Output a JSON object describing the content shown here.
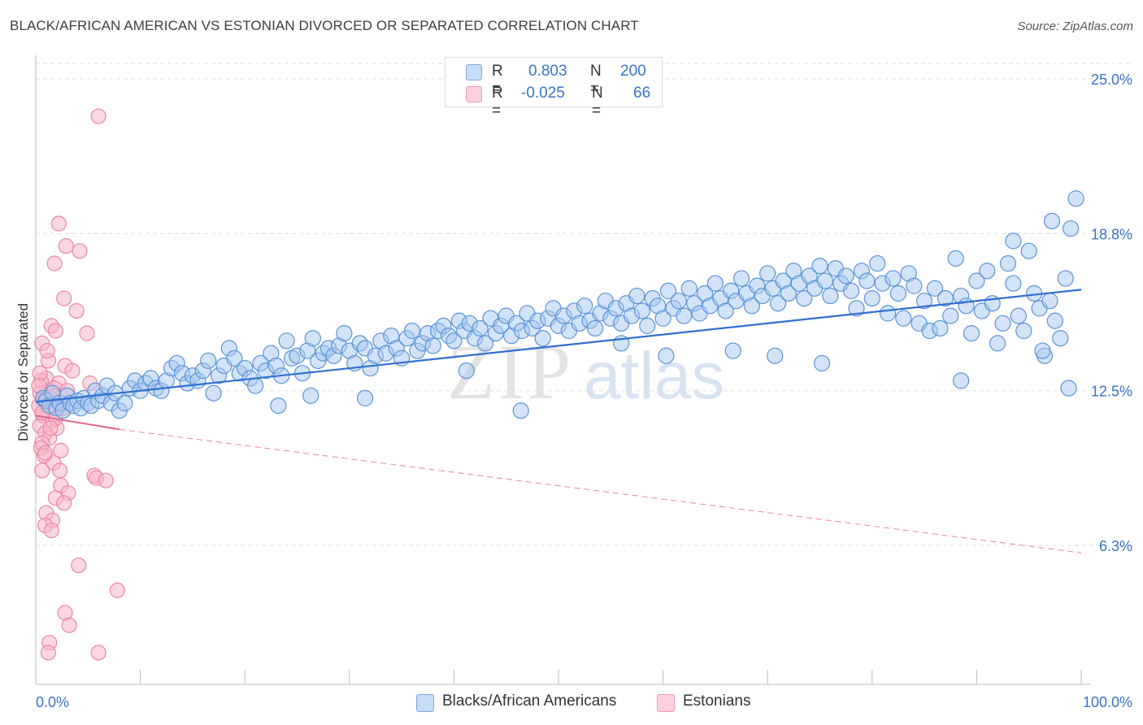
{
  "header": {
    "title": "BLACK/AFRICAN AMERICAN VS ESTONIAN DIVORCED OR SEPARATED CORRELATION CHART",
    "source": "Source: ZipAtlas.com"
  },
  "watermark": {
    "zip": "ZIP",
    "atlas": "atlas"
  },
  "legend": {
    "row1": {
      "r_label": "R =",
      "r_value": "0.803",
      "n_label": "N =",
      "n_value": "200",
      "color": "#a8c8f0"
    },
    "row2": {
      "r_label": "R =",
      "r_value": "-0.025",
      "n_label": "N =",
      "n_value": "66",
      "color": "#f7b6c8"
    }
  },
  "bottom_legend": {
    "series1": "Blacks/African Americans",
    "series2": "Estonians"
  },
  "colors": {
    "blue_fill": "#a8c8f0",
    "blue_stroke": "#5a93d8",
    "blue_line": "#2f6fcf",
    "pink_fill": "#f7b6c8",
    "pink_stroke": "#e987a6",
    "pink_line": "#e0658e",
    "axis_label": "#3873c6",
    "grid": "#dddddd"
  },
  "chart_data": {
    "type": "scatter",
    "title": "BLACK/AFRICAN AMERICAN VS ESTONIAN DIVORCED OR SEPARATED CORRELATION CHART",
    "xlabel": "",
    "ylabel": "Divorced or Separated",
    "x_tick_labels": [
      "0.0%",
      "100.0%"
    ],
    "y_tick_labels": [
      "25.0%",
      "18.8%",
      "12.5%",
      "6.3%"
    ],
    "y_ticks": [
      25.0,
      18.8,
      12.5,
      6.3
    ],
    "xlim": [
      0,
      100
    ],
    "ylim": [
      0.5,
      26.0
    ],
    "grid": true,
    "series": [
      {
        "name": "Blacks/African Americans",
        "R": 0.803,
        "N": 200,
        "trend": {
          "x": [
            0,
            100
          ],
          "y": [
            12.05,
            16.55
          ]
        },
        "points": [
          [
            0.7,
            12.2
          ],
          [
            1.0,
            12.1
          ],
          [
            1.3,
            11.9
          ],
          [
            1.6,
            12.4
          ],
          [
            2.0,
            11.8
          ],
          [
            2.3,
            12.0
          ],
          [
            2.6,
            11.7
          ],
          [
            3.0,
            12.3
          ],
          [
            3.3,
            12.0
          ],
          [
            3.6,
            11.9
          ],
          [
            4.0,
            12.1
          ],
          [
            4.3,
            11.8
          ],
          [
            4.6,
            12.2
          ],
          [
            5.0,
            12.0
          ],
          [
            5.3,
            11.9
          ],
          [
            5.7,
            12.5
          ],
          [
            6.0,
            12.1
          ],
          [
            6.4,
            12.3
          ],
          [
            6.8,
            12.7
          ],
          [
            7.2,
            12.0
          ],
          [
            7.6,
            12.4
          ],
          [
            8.0,
            11.7
          ],
          [
            8.5,
            12.0
          ],
          [
            9.0,
            12.6
          ],
          [
            9.5,
            12.9
          ],
          [
            10.0,
            12.5
          ],
          [
            10.5,
            12.8
          ],
          [
            11.0,
            13.0
          ],
          [
            11.5,
            12.6
          ],
          [
            12.0,
            12.5
          ],
          [
            12.5,
            12.9
          ],
          [
            13.0,
            13.4
          ],
          [
            13.5,
            13.6
          ],
          [
            14.0,
            13.2
          ],
          [
            14.5,
            12.8
          ],
          [
            15.0,
            13.1
          ],
          [
            15.5,
            12.9
          ],
          [
            16.0,
            13.3
          ],
          [
            16.5,
            13.7
          ],
          [
            17.0,
            12.4
          ],
          [
            17.5,
            13.1
          ],
          [
            18.0,
            13.5
          ],
          [
            18.5,
            14.2
          ],
          [
            19.0,
            13.8
          ],
          [
            19.5,
            13.2
          ],
          [
            20.0,
            13.4
          ],
          [
            20.5,
            13.0
          ],
          [
            21.0,
            12.7
          ],
          [
            21.5,
            13.6
          ],
          [
            22.0,
            13.3
          ],
          [
            22.5,
            14.0
          ],
          [
            23.0,
            13.5
          ],
          [
            23.5,
            13.1
          ],
          [
            24.0,
            14.5
          ],
          [
            24.5,
            13.8
          ],
          [
            25.0,
            13.9
          ],
          [
            25.5,
            13.2
          ],
          [
            26.0,
            14.1
          ],
          [
            26.5,
            14.6
          ],
          [
            27.0,
            13.7
          ],
          [
            27.5,
            14.0
          ],
          [
            28.0,
            14.2
          ],
          [
            28.5,
            13.9
          ],
          [
            29.0,
            14.3
          ],
          [
            29.5,
            14.8
          ],
          [
            30.0,
            14.1
          ],
          [
            30.5,
            13.6
          ],
          [
            31.0,
            14.4
          ],
          [
            31.5,
            14.2
          ],
          [
            32.0,
            13.4
          ],
          [
            32.5,
            13.9
          ],
          [
            33.0,
            14.5
          ],
          [
            33.5,
            14.0
          ],
          [
            34.0,
            14.7
          ],
          [
            34.5,
            14.2
          ],
          [
            35.0,
            13.8
          ],
          [
            35.5,
            14.6
          ],
          [
            36.0,
            14.9
          ],
          [
            36.5,
            14.1
          ],
          [
            37.0,
            14.4
          ],
          [
            37.5,
            14.8
          ],
          [
            38.0,
            14.3
          ],
          [
            38.5,
            14.9
          ],
          [
            39.0,
            15.1
          ],
          [
            39.5,
            14.7
          ],
          [
            40.0,
            14.5
          ],
          [
            40.5,
            15.3
          ],
          [
            41.0,
            14.9
          ],
          [
            41.5,
            15.2
          ],
          [
            42.0,
            14.6
          ],
          [
            42.5,
            15.0
          ],
          [
            43.0,
            14.4
          ],
          [
            43.5,
            15.4
          ],
          [
            44.0,
            14.8
          ],
          [
            44.5,
            15.1
          ],
          [
            45.0,
            15.5
          ],
          [
            45.5,
            14.7
          ],
          [
            46.0,
            15.2
          ],
          [
            46.5,
            14.9
          ],
          [
            47.0,
            15.6
          ],
          [
            47.5,
            15.0
          ],
          [
            48.0,
            15.3
          ],
          [
            48.5,
            14.6
          ],
          [
            49.0,
            15.4
          ],
          [
            49.5,
            15.8
          ],
          [
            50.0,
            15.1
          ],
          [
            50.5,
            15.5
          ],
          [
            51.0,
            14.9
          ],
          [
            51.5,
            15.7
          ],
          [
            52.0,
            15.2
          ],
          [
            52.5,
            15.9
          ],
          [
            53.0,
            15.3
          ],
          [
            53.5,
            15.0
          ],
          [
            54.0,
            15.6
          ],
          [
            54.5,
            16.1
          ],
          [
            55.0,
            15.4
          ],
          [
            55.5,
            15.8
          ],
          [
            56.0,
            15.2
          ],
          [
            56.5,
            16.0
          ],
          [
            57.0,
            15.5
          ],
          [
            57.5,
            16.3
          ],
          [
            58.0,
            15.7
          ],
          [
            58.5,
            15.1
          ],
          [
            59.0,
            16.2
          ],
          [
            59.5,
            15.9
          ],
          [
            60.0,
            15.4
          ],
          [
            60.5,
            16.5
          ],
          [
            61.0,
            15.8
          ],
          [
            61.5,
            16.1
          ],
          [
            62.0,
            15.5
          ],
          [
            62.5,
            16.6
          ],
          [
            63.0,
            16.0
          ],
          [
            63.5,
            15.6
          ],
          [
            64.0,
            16.4
          ],
          [
            64.5,
            15.9
          ],
          [
            65.0,
            16.8
          ],
          [
            65.5,
            16.2
          ],
          [
            66.0,
            15.7
          ],
          [
            66.5,
            16.5
          ],
          [
            67.0,
            16.1
          ],
          [
            67.5,
            17.0
          ],
          [
            68.0,
            16.4
          ],
          [
            68.5,
            15.9
          ],
          [
            69.0,
            16.7
          ],
          [
            69.5,
            16.3
          ],
          [
            70.0,
            17.2
          ],
          [
            70.5,
            16.6
          ],
          [
            71.0,
            16.0
          ],
          [
            71.5,
            16.9
          ],
          [
            72.0,
            16.4
          ],
          [
            72.5,
            17.3
          ],
          [
            73.0,
            16.8
          ],
          [
            73.5,
            16.2
          ],
          [
            74.0,
            17.1
          ],
          [
            74.5,
            16.6
          ],
          [
            75.0,
            17.5
          ],
          [
            75.5,
            16.9
          ],
          [
            76.0,
            16.3
          ],
          [
            76.5,
            17.4
          ],
          [
            77.0,
            16.8
          ],
          [
            23.2,
            11.9
          ],
          [
            26.3,
            12.3
          ],
          [
            46.4,
            11.7
          ],
          [
            31.5,
            12.2
          ],
          [
            41.2,
            13.3
          ],
          [
            56.0,
            14.4
          ],
          [
            60.3,
            13.9
          ],
          [
            66.7,
            14.1
          ],
          [
            70.7,
            13.9
          ],
          [
            75.2,
            13.6
          ],
          [
            77.5,
            17.1
          ],
          [
            78.0,
            16.5
          ],
          [
            78.5,
            15.8
          ],
          [
            79.0,
            17.3
          ],
          [
            79.5,
            16.9
          ],
          [
            80.0,
            16.2
          ],
          [
            80.5,
            17.6
          ],
          [
            81.0,
            16.8
          ],
          [
            81.5,
            15.6
          ],
          [
            82.0,
            17.0
          ],
          [
            82.5,
            16.4
          ],
          [
            83.0,
            15.4
          ],
          [
            83.5,
            17.2
          ],
          [
            84.0,
            16.7
          ],
          [
            84.5,
            15.2
          ],
          [
            85.0,
            16.1
          ],
          [
            85.5,
            14.9
          ],
          [
            86.0,
            16.6
          ],
          [
            86.5,
            15.0
          ],
          [
            87.0,
            16.2
          ],
          [
            87.5,
            15.5
          ],
          [
            88.0,
            17.8
          ],
          [
            88.5,
            16.3
          ],
          [
            89.0,
            15.9
          ],
          [
            89.5,
            14.8
          ],
          [
            90.0,
            16.9
          ],
          [
            90.5,
            15.7
          ],
          [
            91.0,
            17.3
          ],
          [
            91.5,
            16.0
          ],
          [
            92.0,
            14.4
          ],
          [
            92.5,
            15.2
          ],
          [
            93.0,
            17.6
          ],
          [
            93.5,
            16.8
          ],
          [
            94.0,
            15.5
          ],
          [
            94.5,
            14.9
          ],
          [
            95.0,
            18.1
          ],
          [
            95.5,
            16.4
          ],
          [
            96.0,
            15.8
          ],
          [
            96.5,
            13.9
          ],
          [
            97.0,
            16.1
          ],
          [
            97.5,
            15.3
          ],
          [
            98.0,
            14.6
          ],
          [
            98.5,
            17.0
          ],
          [
            99.0,
            19.0
          ],
          [
            99.5,
            20.2
          ],
          [
            93.5,
            18.5
          ],
          [
            97.2,
            19.3
          ],
          [
            98.8,
            12.6
          ],
          [
            96.3,
            14.1
          ],
          [
            88.5,
            12.9
          ]
        ]
      },
      {
        "name": "Estonians",
        "R": -0.025,
        "N": 66,
        "trend_solid": {
          "x": [
            0,
            8.0
          ],
          "y": [
            11.5,
            10.95
          ]
        },
        "trend_dashed": {
          "x": [
            8.0,
            100
          ],
          "y": [
            10.95,
            6.0
          ]
        },
        "points": [
          [
            6.0,
            23.5
          ],
          [
            2.2,
            19.2
          ],
          [
            2.9,
            18.3
          ],
          [
            1.8,
            17.6
          ],
          [
            4.2,
            18.1
          ],
          [
            2.7,
            16.2
          ],
          [
            3.9,
            15.7
          ],
          [
            1.5,
            15.1
          ],
          [
            4.9,
            14.8
          ],
          [
            1.9,
            14.9
          ],
          [
            0.6,
            14.4
          ],
          [
            1.2,
            13.7
          ],
          [
            2.8,
            13.5
          ],
          [
            3.5,
            13.3
          ],
          [
            1.0,
            13.0
          ],
          [
            2.2,
            12.8
          ],
          [
            0.5,
            12.9
          ],
          [
            1.8,
            12.6
          ],
          [
            0.4,
            12.4
          ],
          [
            1.4,
            12.2
          ],
          [
            2.5,
            12.0
          ],
          [
            0.3,
            11.9
          ],
          [
            1.1,
            11.7
          ],
          [
            0.7,
            11.5
          ],
          [
            1.6,
            11.3
          ],
          [
            0.4,
            11.1
          ],
          [
            2.0,
            11.0
          ],
          [
            0.9,
            10.8
          ],
          [
            1.3,
            10.6
          ],
          [
            0.6,
            10.4
          ],
          [
            0.5,
            10.2
          ],
          [
            2.4,
            10.1
          ],
          [
            0.8,
            9.9
          ],
          [
            1.7,
            9.6
          ],
          [
            0.6,
            9.3
          ],
          [
            5.6,
            9.1
          ],
          [
            5.8,
            9.0
          ],
          [
            6.7,
            8.9
          ],
          [
            2.4,
            8.7
          ],
          [
            3.1,
            8.4
          ],
          [
            1.9,
            8.2
          ],
          [
            2.7,
            8.0
          ],
          [
            1.0,
            7.6
          ],
          [
            1.6,
            7.3
          ],
          [
            0.9,
            7.1
          ],
          [
            1.5,
            6.9
          ],
          [
            4.1,
            5.5
          ],
          [
            7.8,
            4.5
          ],
          [
            2.8,
            3.6
          ],
          [
            3.2,
            3.1
          ],
          [
            1.3,
            2.4
          ],
          [
            6.0,
            2.0
          ],
          [
            1.2,
            2.0
          ],
          [
            0.8,
            12.1
          ],
          [
            1.9,
            11.4
          ],
          [
            2.6,
            11.8
          ],
          [
            0.4,
            13.2
          ],
          [
            1.1,
            14.1
          ],
          [
            3.0,
            12.5
          ],
          [
            0.6,
            11.6
          ],
          [
            1.7,
            12.3
          ],
          [
            2.3,
            9.3
          ],
          [
            0.9,
            10.0
          ],
          [
            1.4,
            11.0
          ],
          [
            5.2,
            12.8
          ],
          [
            0.3,
            12.7
          ]
        ]
      }
    ]
  }
}
